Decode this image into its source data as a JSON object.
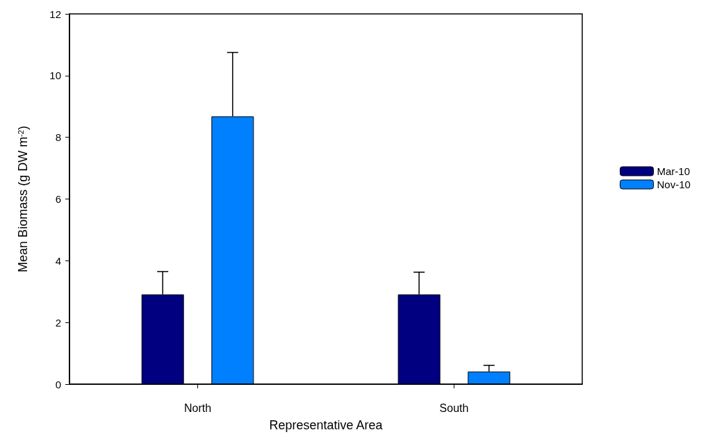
{
  "chart_data": {
    "type": "bar",
    "xlabel": "Representative Area",
    "ylabel": "Mean Biomass (g DW m$^{-2}$)",
    "categories": [
      "North",
      "South"
    ],
    "series": [
      {
        "name": "Mar-10",
        "color": "#000080",
        "values": [
          2.91,
          2.91
        ],
        "errors": [
          [
            2.91,
            3.65
          ],
          [
            2.91,
            3.63
          ]
        ]
      },
      {
        "name": "Nov-10",
        "color": "#0080ff",
        "values": [
          8.68,
          0.41
        ],
        "errors": [
          [
            8.68,
            10.75
          ],
          [
            0.41,
            0.61
          ]
        ]
      }
    ],
    "ylim": [
      0,
      12
    ],
    "yticks": [
      0,
      2,
      4,
      6,
      8,
      10,
      12
    ],
    "grid": false,
    "legend": "right"
  }
}
